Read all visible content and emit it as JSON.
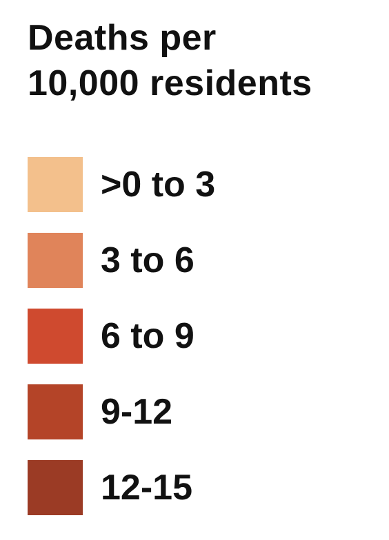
{
  "legend": {
    "title_line1": "Deaths per",
    "title_line2": "10,000 residents",
    "items": [
      {
        "label": ">0 to 3",
        "color": "#f3c08c"
      },
      {
        "label": "3 to 6",
        "color": "#e0845a"
      },
      {
        "label": "6 to 9",
        "color": "#cf4a2f"
      },
      {
        "label": "9-12",
        "color": "#b44428"
      },
      {
        "label": "12-15",
        "color": "#9b3b25"
      }
    ]
  }
}
